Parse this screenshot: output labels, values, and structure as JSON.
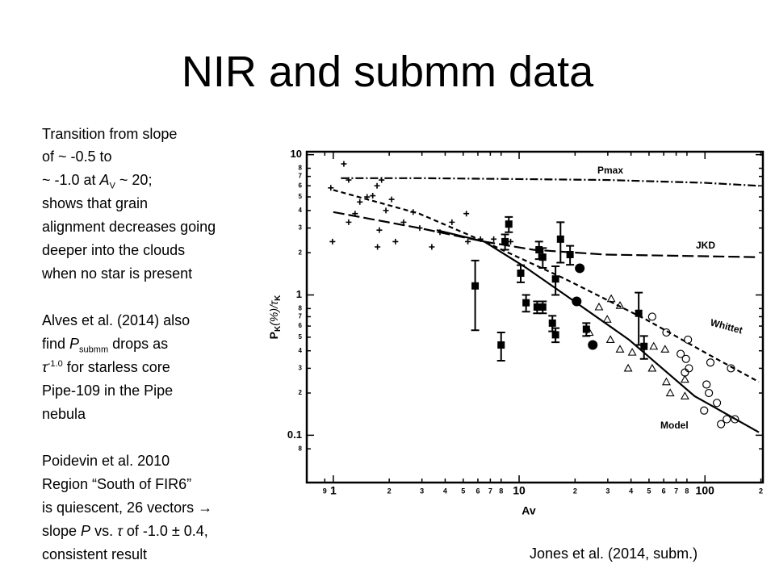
{
  "slide": {
    "title": "NIR and submm data",
    "paragraphs": [
      [
        "Transition from slope",
        "of ~ -0.5 to",
        [
          "~ -1.0 at ",
          "A",
          "V",
          " ~ 20;"
        ],
        "shows that grain",
        "alignment decreases going",
        "deeper into the clouds",
        "when no star is present"
      ],
      [
        "Alves et al. (2014) also",
        [
          "find ",
          "P",
          "submm",
          " drops as"
        ],
        [
          "τ",
          "-1.0",
          " for starless core"
        ],
        "Pipe-109 in the Pipe",
        "nebula"
      ],
      [
        "Poidevin et al. 2010",
        "Region “South of FIR6”",
        "is quiescent, 26 vectors →",
        [
          "slope ",
          "P",
          " vs. ",
          "τ",
          " of -1.0 ± 0.4,"
        ],
        "consistent result"
      ]
    ],
    "caption": "Jones et al. (2014, subm.)"
  },
  "chart_data": {
    "type": "scatter",
    "xlabel": "Av",
    "ylabel": [
      "P",
      "K",
      "(%)/",
      "τ",
      "K"
    ],
    "xscale": "log",
    "yscale": "log",
    "xlim": [
      0.72,
      205
    ],
    "ylim": [
      0.046,
      10.5
    ],
    "xticks": [
      {
        "value": 0.9,
        "label": "9"
      },
      1,
      2,
      3,
      4,
      5,
      6,
      7,
      8,
      10,
      {
        "value": 20,
        "label": "2"
      },
      {
        "value": 30,
        "label": "3"
      },
      {
        "value": 40,
        "label": "4"
      },
      {
        "value": 50,
        "label": "5"
      },
      {
        "value": 60,
        "label": "6"
      },
      {
        "value": 70,
        "label": "7"
      },
      {
        "value": 80,
        "label": "8"
      },
      100,
      {
        "value": 200,
        "label": "2"
      }
    ],
    "yticks": [
      10,
      8,
      7,
      6,
      5,
      4,
      3,
      2,
      1,
      {
        "value": 0.8,
        "label": "8"
      },
      {
        "value": 0.7,
        "label": "7"
      },
      {
        "value": 0.6,
        "label": "6"
      },
      {
        "value": 0.5,
        "label": "5"
      },
      {
        "value": 0.4,
        "label": "4"
      },
      {
        "value": 0.3,
        "label": "3"
      },
      {
        "value": 0.2,
        "label": "2"
      },
      0.1,
      {
        "value": 0.08,
        "label": "8"
      }
    ],
    "grid": false,
    "series": [
      {
        "marker": "plus",
        "color": "#000000",
        "x": [
          1.14,
          0.99,
          1.21,
          1.31,
          1.39,
          1.52,
          1.63,
          1.72,
          1.82,
          2.06,
          1.92,
          1.77,
          1.73,
          2.16,
          2.39,
          2.69,
          2.92,
          3.39,
          3.75,
          4.35,
          5.2,
          5.3,
          6.2,
          7.3,
          9.0,
          0.97,
          1.21
        ],
        "values": [
          8.6,
          2.4,
          3.3,
          3.8,
          4.6,
          5.0,
          5.1,
          6.0,
          6.6,
          4.8,
          4.0,
          2.9,
          2.2,
          2.4,
          3.3,
          3.9,
          3.0,
          2.2,
          2.8,
          3.3,
          3.8,
          2.4,
          2.5,
          2.5,
          2.4,
          5.8,
          6.6
        ]
      },
      {
        "marker": "square",
        "color": "#000000",
        "x": [
          5.8,
          8.0,
          8.8,
          8.4,
          10.2,
          10.9,
          12.5,
          13.4,
          12.8,
          13.4,
          15.7,
          16.7,
          18.8,
          15.1,
          15.7,
          23,
          44,
          47
        ],
        "values": [
          1.16,
          0.44,
          3.2,
          2.4,
          1.43,
          0.88,
          0.82,
          0.82,
          2.1,
          1.86,
          1.3,
          2.5,
          1.94,
          0.63,
          0.52,
          0.57,
          0.74,
          0.43
        ],
        "errors": [
          0.6,
          0.1,
          0.4,
          0.3,
          0.2,
          0.12,
          0.08,
          0.08,
          0.3,
          0.3,
          0.3,
          0.8,
          0.3,
          0.08,
          0.06,
          0.06,
          0.3,
          0.08
        ]
      },
      {
        "marker": "circle",
        "color": "#000000",
        "x": [
          21.2,
          20.4,
          24.9
        ],
        "values": [
          1.55,
          0.9,
          0.44
        ]
      },
      {
        "marker": "triangle",
        "color": "#000000",
        "x": [
          31.3,
          34.9,
          26.9,
          29.8,
          23.9,
          34.9,
          38.6,
          53,
          61,
          52,
          62,
          65,
          78,
          40.6,
          78,
          31
        ],
        "values": [
          0.94,
          0.84,
          0.82,
          0.67,
          0.54,
          0.41,
          0.3,
          0.43,
          0.41,
          0.3,
          0.24,
          0.2,
          0.19,
          0.39,
          0.25,
          0.48
        ]
      },
      {
        "marker": "open-circle",
        "color": "#000000",
        "x": [
          52,
          62,
          74,
          79,
          82,
          107,
          138,
          102,
          105,
          116,
          99,
          131,
          145,
          122,
          81,
          78
        ],
        "values": [
          0.7,
          0.54,
          0.38,
          0.35,
          0.3,
          0.33,
          0.3,
          0.23,
          0.2,
          0.17,
          0.15,
          0.13,
          0.13,
          0.12,
          0.48,
          0.28
        ]
      },
      {
        "name": "Pmax",
        "line": "dash-dot",
        "color": "#000000",
        "x": [
          1.1,
          3,
          10,
          30,
          100,
          195
        ],
        "values": [
          6.8,
          6.8,
          6.7,
          6.6,
          6.3,
          6.0
        ]
      },
      {
        "name": "JKD",
        "line": "long-dash",
        "color": "#000000",
        "x": [
          1.0,
          2.9,
          6.5,
          11.9,
          29,
          195
        ],
        "values": [
          3.9,
          3.0,
          2.4,
          2.1,
          1.94,
          1.86
        ]
      },
      {
        "name": "Whittet",
        "line": "short-dash",
        "color": "#000000",
        "x": [
          1.0,
          2.9,
          6.5,
          17.7,
          48,
          107,
          195
        ],
        "values": [
          5.6,
          3.8,
          2.4,
          1.3,
          0.67,
          0.37,
          0.24
        ]
      },
      {
        "name": "Model",
        "line": "solid",
        "color": "#000000",
        "x": [
          3.6,
          6.5,
          10.7,
          17.7,
          39,
          88,
          195
        ],
        "values": [
          2.9,
          2.4,
          1.59,
          1.0,
          0.48,
          0.19,
          0.105
        ]
      }
    ]
  }
}
